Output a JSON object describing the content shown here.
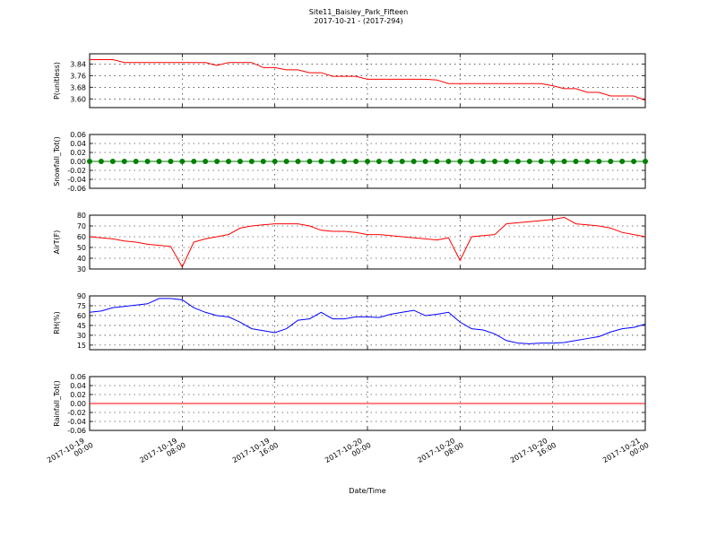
{
  "chart_data": [
    {
      "type": "line",
      "title": "Site11_Baisley_Park_Fifteen",
      "subtitle": "2017-10-21 - (2017-294)",
      "ylabel": "P(unitless)",
      "x": [
        "2017-10-19 00:00",
        "2017-10-19 01:00",
        "2017-10-19 02:00",
        "2017-10-19 03:00",
        "2017-10-19 04:00",
        "2017-10-19 05:00",
        "2017-10-19 06:00",
        "2017-10-19 07:00",
        "2017-10-19 08:00",
        "2017-10-19 09:00",
        "2017-10-19 10:00",
        "2017-10-19 11:00",
        "2017-10-19 12:00",
        "2017-10-19 13:00",
        "2017-10-19 14:00",
        "2017-10-19 15:00",
        "2017-10-19 16:00",
        "2017-10-19 17:00",
        "2017-10-19 18:00",
        "2017-10-19 19:00",
        "2017-10-19 20:00",
        "2017-10-19 21:00",
        "2017-10-19 22:00",
        "2017-10-19 23:00",
        "2017-10-20 00:00",
        "2017-10-20 01:00",
        "2017-10-20 02:00",
        "2017-10-20 03:00",
        "2017-10-20 04:00",
        "2017-10-20 05:00",
        "2017-10-20 06:00",
        "2017-10-20 07:00",
        "2017-10-20 08:00",
        "2017-10-20 09:00",
        "2017-10-20 10:00",
        "2017-10-20 11:00",
        "2017-10-20 12:00",
        "2017-10-20 13:00",
        "2017-10-20 14:00",
        "2017-10-20 15:00",
        "2017-10-20 16:00",
        "2017-10-20 17:00",
        "2017-10-20 18:00",
        "2017-10-20 19:00",
        "2017-10-20 20:00",
        "2017-10-20 21:00",
        "2017-10-20 22:00",
        "2017-10-20 23:00",
        "2017-10-21 00:00"
      ],
      "series": [
        {
          "color": "#ff0000",
          "values": [
            3.87,
            3.87,
            3.87,
            3.85,
            3.85,
            3.85,
            3.85,
            3.85,
            3.85,
            3.85,
            3.85,
            3.83,
            3.85,
            3.85,
            3.85,
            3.815,
            3.815,
            3.8,
            3.8,
            3.78,
            3.78,
            3.755,
            3.755,
            3.755,
            3.735,
            3.735,
            3.735,
            3.735,
            3.735,
            3.735,
            3.73,
            3.705,
            3.705,
            3.705,
            3.705,
            3.705,
            3.705,
            3.705,
            3.705,
            3.705,
            3.69,
            3.67,
            3.67,
            3.645,
            3.645,
            3.62,
            3.62,
            3.62,
            3.59
          ]
        }
      ],
      "xlim": [
        "2017-10-19 00:00",
        "2017-10-21 00:00"
      ],
      "xticks": [
        "2017-10-19 00:00",
        "2017-10-19 08:00",
        "2017-10-19 16:00",
        "2017-10-20 00:00",
        "2017-10-20 08:00",
        "2017-10-20 16:00",
        "2017-10-21 00:00"
      ],
      "ylim": [
        3.54,
        3.91
      ],
      "yticks": [
        {
          "value": 3.6,
          "label": "3.60"
        },
        {
          "value": 3.68,
          "label": "3.68"
        },
        {
          "value": 3.76,
          "label": "3.76"
        },
        {
          "value": 3.84,
          "label": "3.84"
        }
      ],
      "grid": true
    },
    {
      "type": "line",
      "ylabel": "Snowfall_Tot()",
      "marker": true,
      "x": [
        "2017-10-19 00:00",
        "2017-10-19 01:00",
        "2017-10-19 02:00",
        "2017-10-19 03:00",
        "2017-10-19 04:00",
        "2017-10-19 05:00",
        "2017-10-19 06:00",
        "2017-10-19 07:00",
        "2017-10-19 08:00",
        "2017-10-19 09:00",
        "2017-10-19 10:00",
        "2017-10-19 11:00",
        "2017-10-19 12:00",
        "2017-10-19 13:00",
        "2017-10-19 14:00",
        "2017-10-19 15:00",
        "2017-10-19 16:00",
        "2017-10-19 17:00",
        "2017-10-19 18:00",
        "2017-10-19 19:00",
        "2017-10-19 20:00",
        "2017-10-19 21:00",
        "2017-10-19 22:00",
        "2017-10-19 23:00",
        "2017-10-20 00:00",
        "2017-10-20 01:00",
        "2017-10-20 02:00",
        "2017-10-20 03:00",
        "2017-10-20 04:00",
        "2017-10-20 05:00",
        "2017-10-20 06:00",
        "2017-10-20 07:00",
        "2017-10-20 08:00",
        "2017-10-20 09:00",
        "2017-10-20 10:00",
        "2017-10-20 11:00",
        "2017-10-20 12:00",
        "2017-10-20 13:00",
        "2017-10-20 14:00",
        "2017-10-20 15:00",
        "2017-10-20 16:00",
        "2017-10-20 17:00",
        "2017-10-20 18:00",
        "2017-10-20 19:00",
        "2017-10-20 20:00",
        "2017-10-20 21:00",
        "2017-10-20 22:00",
        "2017-10-20 23:00",
        "2017-10-21 00:00"
      ],
      "series": [
        {
          "color": "#008000",
          "values": [
            0,
            0,
            0,
            0,
            0,
            0,
            0,
            0,
            0,
            0,
            0,
            0,
            0,
            0,
            0,
            0,
            0,
            0,
            0,
            0,
            0,
            0,
            0,
            0,
            0,
            0,
            0,
            0,
            0,
            0,
            0,
            0,
            0,
            0,
            0,
            0,
            0,
            0,
            0,
            0,
            0,
            0,
            0,
            0,
            0,
            0,
            0,
            0,
            0
          ]
        }
      ],
      "xlim": [
        "2017-10-19 00:00",
        "2017-10-21 00:00"
      ],
      "xticks": [
        "2017-10-19 00:00",
        "2017-10-19 08:00",
        "2017-10-19 16:00",
        "2017-10-20 00:00",
        "2017-10-20 08:00",
        "2017-10-20 16:00",
        "2017-10-21 00:00"
      ],
      "ylim": [
        -0.06,
        0.06
      ],
      "yticks": [
        {
          "value": -0.06,
          "label": "-0.06"
        },
        {
          "value": -0.04,
          "label": "-0.04"
        },
        {
          "value": -0.02,
          "label": "-0.02"
        },
        {
          "value": 0,
          "label": "0.00"
        },
        {
          "value": 0.02,
          "label": "0.02"
        },
        {
          "value": 0.04,
          "label": "0.04"
        },
        {
          "value": 0.06,
          "label": "0.06"
        }
      ],
      "grid": true
    },
    {
      "type": "line",
      "ylabel": "AirT(F)",
      "x": [
        "2017-10-19 00:00",
        "2017-10-19 01:00",
        "2017-10-19 02:00",
        "2017-10-19 03:00",
        "2017-10-19 04:00",
        "2017-10-19 05:00",
        "2017-10-19 06:00",
        "2017-10-19 07:00",
        "2017-10-19 08:00",
        "2017-10-19 09:00",
        "2017-10-19 10:00",
        "2017-10-19 11:00",
        "2017-10-19 12:00",
        "2017-10-19 13:00",
        "2017-10-19 14:00",
        "2017-10-19 15:00",
        "2017-10-19 16:00",
        "2017-10-19 17:00",
        "2017-10-19 18:00",
        "2017-10-19 19:00",
        "2017-10-19 20:00",
        "2017-10-19 21:00",
        "2017-10-19 22:00",
        "2017-10-19 23:00",
        "2017-10-20 00:00",
        "2017-10-20 01:00",
        "2017-10-20 02:00",
        "2017-10-20 03:00",
        "2017-10-20 04:00",
        "2017-10-20 05:00",
        "2017-10-20 06:00",
        "2017-10-20 07:00",
        "2017-10-20 08:00",
        "2017-10-20 09:00",
        "2017-10-20 10:00",
        "2017-10-20 11:00",
        "2017-10-20 12:00",
        "2017-10-20 13:00",
        "2017-10-20 14:00",
        "2017-10-20 15:00",
        "2017-10-20 16:00",
        "2017-10-20 17:00",
        "2017-10-20 18:00",
        "2017-10-20 19:00",
        "2017-10-20 20:00",
        "2017-10-20 21:00",
        "2017-10-20 22:00",
        "2017-10-20 23:00",
        "2017-10-21 00:00"
      ],
      "series": [
        {
          "color": "#ff0000",
          "values": [
            60,
            59,
            58,
            56,
            55,
            53,
            52,
            51,
            32,
            55,
            58,
            60,
            62,
            68,
            70,
            71,
            72,
            72,
            72,
            70,
            66,
            65,
            65,
            64,
            62,
            62,
            61,
            60,
            59,
            58,
            57,
            59,
            38,
            60,
            61,
            62,
            72,
            73,
            74,
            75,
            76,
            78,
            72,
            71,
            70,
            68,
            64,
            62,
            60
          ]
        }
      ],
      "xlim": [
        "2017-10-19 00:00",
        "2017-10-21 00:00"
      ],
      "xticks": [
        "2017-10-19 00:00",
        "2017-10-19 08:00",
        "2017-10-19 16:00",
        "2017-10-20 00:00",
        "2017-10-20 08:00",
        "2017-10-20 16:00",
        "2017-10-21 00:00"
      ],
      "ylim": [
        30,
        80
      ],
      "yticks": [
        30,
        40,
        50,
        60,
        70,
        80
      ],
      "grid": true
    },
    {
      "type": "line",
      "ylabel": "RH(%)",
      "x": [
        "2017-10-19 00:00",
        "2017-10-19 01:00",
        "2017-10-19 02:00",
        "2017-10-19 03:00",
        "2017-10-19 04:00",
        "2017-10-19 05:00",
        "2017-10-19 06:00",
        "2017-10-19 07:00",
        "2017-10-19 08:00",
        "2017-10-19 09:00",
        "2017-10-19 10:00",
        "2017-10-19 11:00",
        "2017-10-19 12:00",
        "2017-10-19 13:00",
        "2017-10-19 14:00",
        "2017-10-19 15:00",
        "2017-10-19 16:00",
        "2017-10-19 17:00",
        "2017-10-19 18:00",
        "2017-10-19 19:00",
        "2017-10-19 20:00",
        "2017-10-19 21:00",
        "2017-10-19 22:00",
        "2017-10-19 23:00",
        "2017-10-20 00:00",
        "2017-10-20 01:00",
        "2017-10-20 02:00",
        "2017-10-20 03:00",
        "2017-10-20 04:00",
        "2017-10-20 05:00",
        "2017-10-20 06:00",
        "2017-10-20 07:00",
        "2017-10-20 08:00",
        "2017-10-20 09:00",
        "2017-10-20 10:00",
        "2017-10-20 11:00",
        "2017-10-20 12:00",
        "2017-10-20 13:00",
        "2017-10-20 14:00",
        "2017-10-20 15:00",
        "2017-10-20 16:00",
        "2017-10-20 17:00",
        "2017-10-20 18:00",
        "2017-10-20 19:00",
        "2017-10-20 20:00",
        "2017-10-20 21:00",
        "2017-10-20 22:00",
        "2017-10-20 23:00",
        "2017-10-21 00:00"
      ],
      "series": [
        {
          "color": "#0000ff",
          "values": [
            65,
            67,
            72,
            74,
            76,
            78,
            86,
            86,
            84,
            72,
            65,
            60,
            58,
            50,
            40,
            37,
            34,
            40,
            53,
            55,
            65,
            55,
            55,
            58,
            58,
            57,
            62,
            65,
            68,
            60,
            62,
            65,
            50,
            40,
            38,
            32,
            22,
            18,
            17,
            18,
            18,
            19,
            22,
            25,
            28,
            35,
            40,
            42,
            47
          ]
        }
      ],
      "xlim": [
        "2017-10-19 00:00",
        "2017-10-21 00:00"
      ],
      "xticks": [
        "2017-10-19 00:00",
        "2017-10-19 08:00",
        "2017-10-19 16:00",
        "2017-10-20 00:00",
        "2017-10-20 08:00",
        "2017-10-20 16:00",
        "2017-10-21 00:00"
      ],
      "ylim": [
        8,
        90
      ],
      "yticks": [
        15,
        30,
        45,
        60,
        75,
        90
      ],
      "grid": true
    },
    {
      "type": "line",
      "ylabel": "Rainfall_Tot()",
      "xlabel": "Date/Time",
      "x": [
        "2017-10-19 00:00",
        "2017-10-19 01:00",
        "2017-10-19 02:00",
        "2017-10-19 03:00",
        "2017-10-19 04:00",
        "2017-10-19 05:00",
        "2017-10-19 06:00",
        "2017-10-19 07:00",
        "2017-10-19 08:00",
        "2017-10-19 09:00",
        "2017-10-19 10:00",
        "2017-10-19 11:00",
        "2017-10-19 12:00",
        "2017-10-19 13:00",
        "2017-10-19 14:00",
        "2017-10-19 15:00",
        "2017-10-19 16:00",
        "2017-10-19 17:00",
        "2017-10-19 18:00",
        "2017-10-19 19:00",
        "2017-10-19 20:00",
        "2017-10-19 21:00",
        "2017-10-19 22:00",
        "2017-10-19 23:00",
        "2017-10-20 00:00",
        "2017-10-20 01:00",
        "2017-10-20 02:00",
        "2017-10-20 03:00",
        "2017-10-20 04:00",
        "2017-10-20 05:00",
        "2017-10-20 06:00",
        "2017-10-20 07:00",
        "2017-10-20 08:00",
        "2017-10-20 09:00",
        "2017-10-20 10:00",
        "2017-10-20 11:00",
        "2017-10-20 12:00",
        "2017-10-20 13:00",
        "2017-10-20 14:00",
        "2017-10-20 15:00",
        "2017-10-20 16:00",
        "2017-10-20 17:00",
        "2017-10-20 18:00",
        "2017-10-20 19:00",
        "2017-10-20 20:00",
        "2017-10-20 21:00",
        "2017-10-20 22:00",
        "2017-10-20 23:00",
        "2017-10-21 00:00"
      ],
      "series": [
        {
          "color": "#ff0000",
          "values": [
            0,
            0,
            0,
            0,
            0,
            0,
            0,
            0,
            0,
            0,
            0,
            0,
            0,
            0,
            0,
            0,
            0,
            0,
            0,
            0,
            0,
            0,
            0,
            0,
            0,
            0,
            0,
            0,
            0,
            0,
            0,
            0,
            0,
            0,
            0,
            0,
            0,
            0,
            0,
            0,
            0,
            0,
            0,
            0,
            0,
            0,
            0,
            0,
            0
          ]
        }
      ],
      "xlim": [
        "2017-10-19 00:00",
        "2017-10-21 00:00"
      ],
      "xticks": [
        "2017-10-19 00:00",
        "2017-10-19 08:00",
        "2017-10-19 16:00",
        "2017-10-20 00:00",
        "2017-10-20 08:00",
        "2017-10-20 16:00",
        "2017-10-21 00:00"
      ],
      "ylim": [
        -0.06,
        0.06
      ],
      "yticks": [
        {
          "value": -0.06,
          "label": "-0.06"
        },
        {
          "value": -0.04,
          "label": "-0.04"
        },
        {
          "value": -0.02,
          "label": "-0.02"
        },
        {
          "value": 0,
          "label": "0.00"
        },
        {
          "value": 0.02,
          "label": "0.02"
        },
        {
          "value": 0.04,
          "label": "0.04"
        },
        {
          "value": 0.06,
          "label": "0.06"
        }
      ],
      "grid": true,
      "show_xtick_labels": true
    }
  ]
}
